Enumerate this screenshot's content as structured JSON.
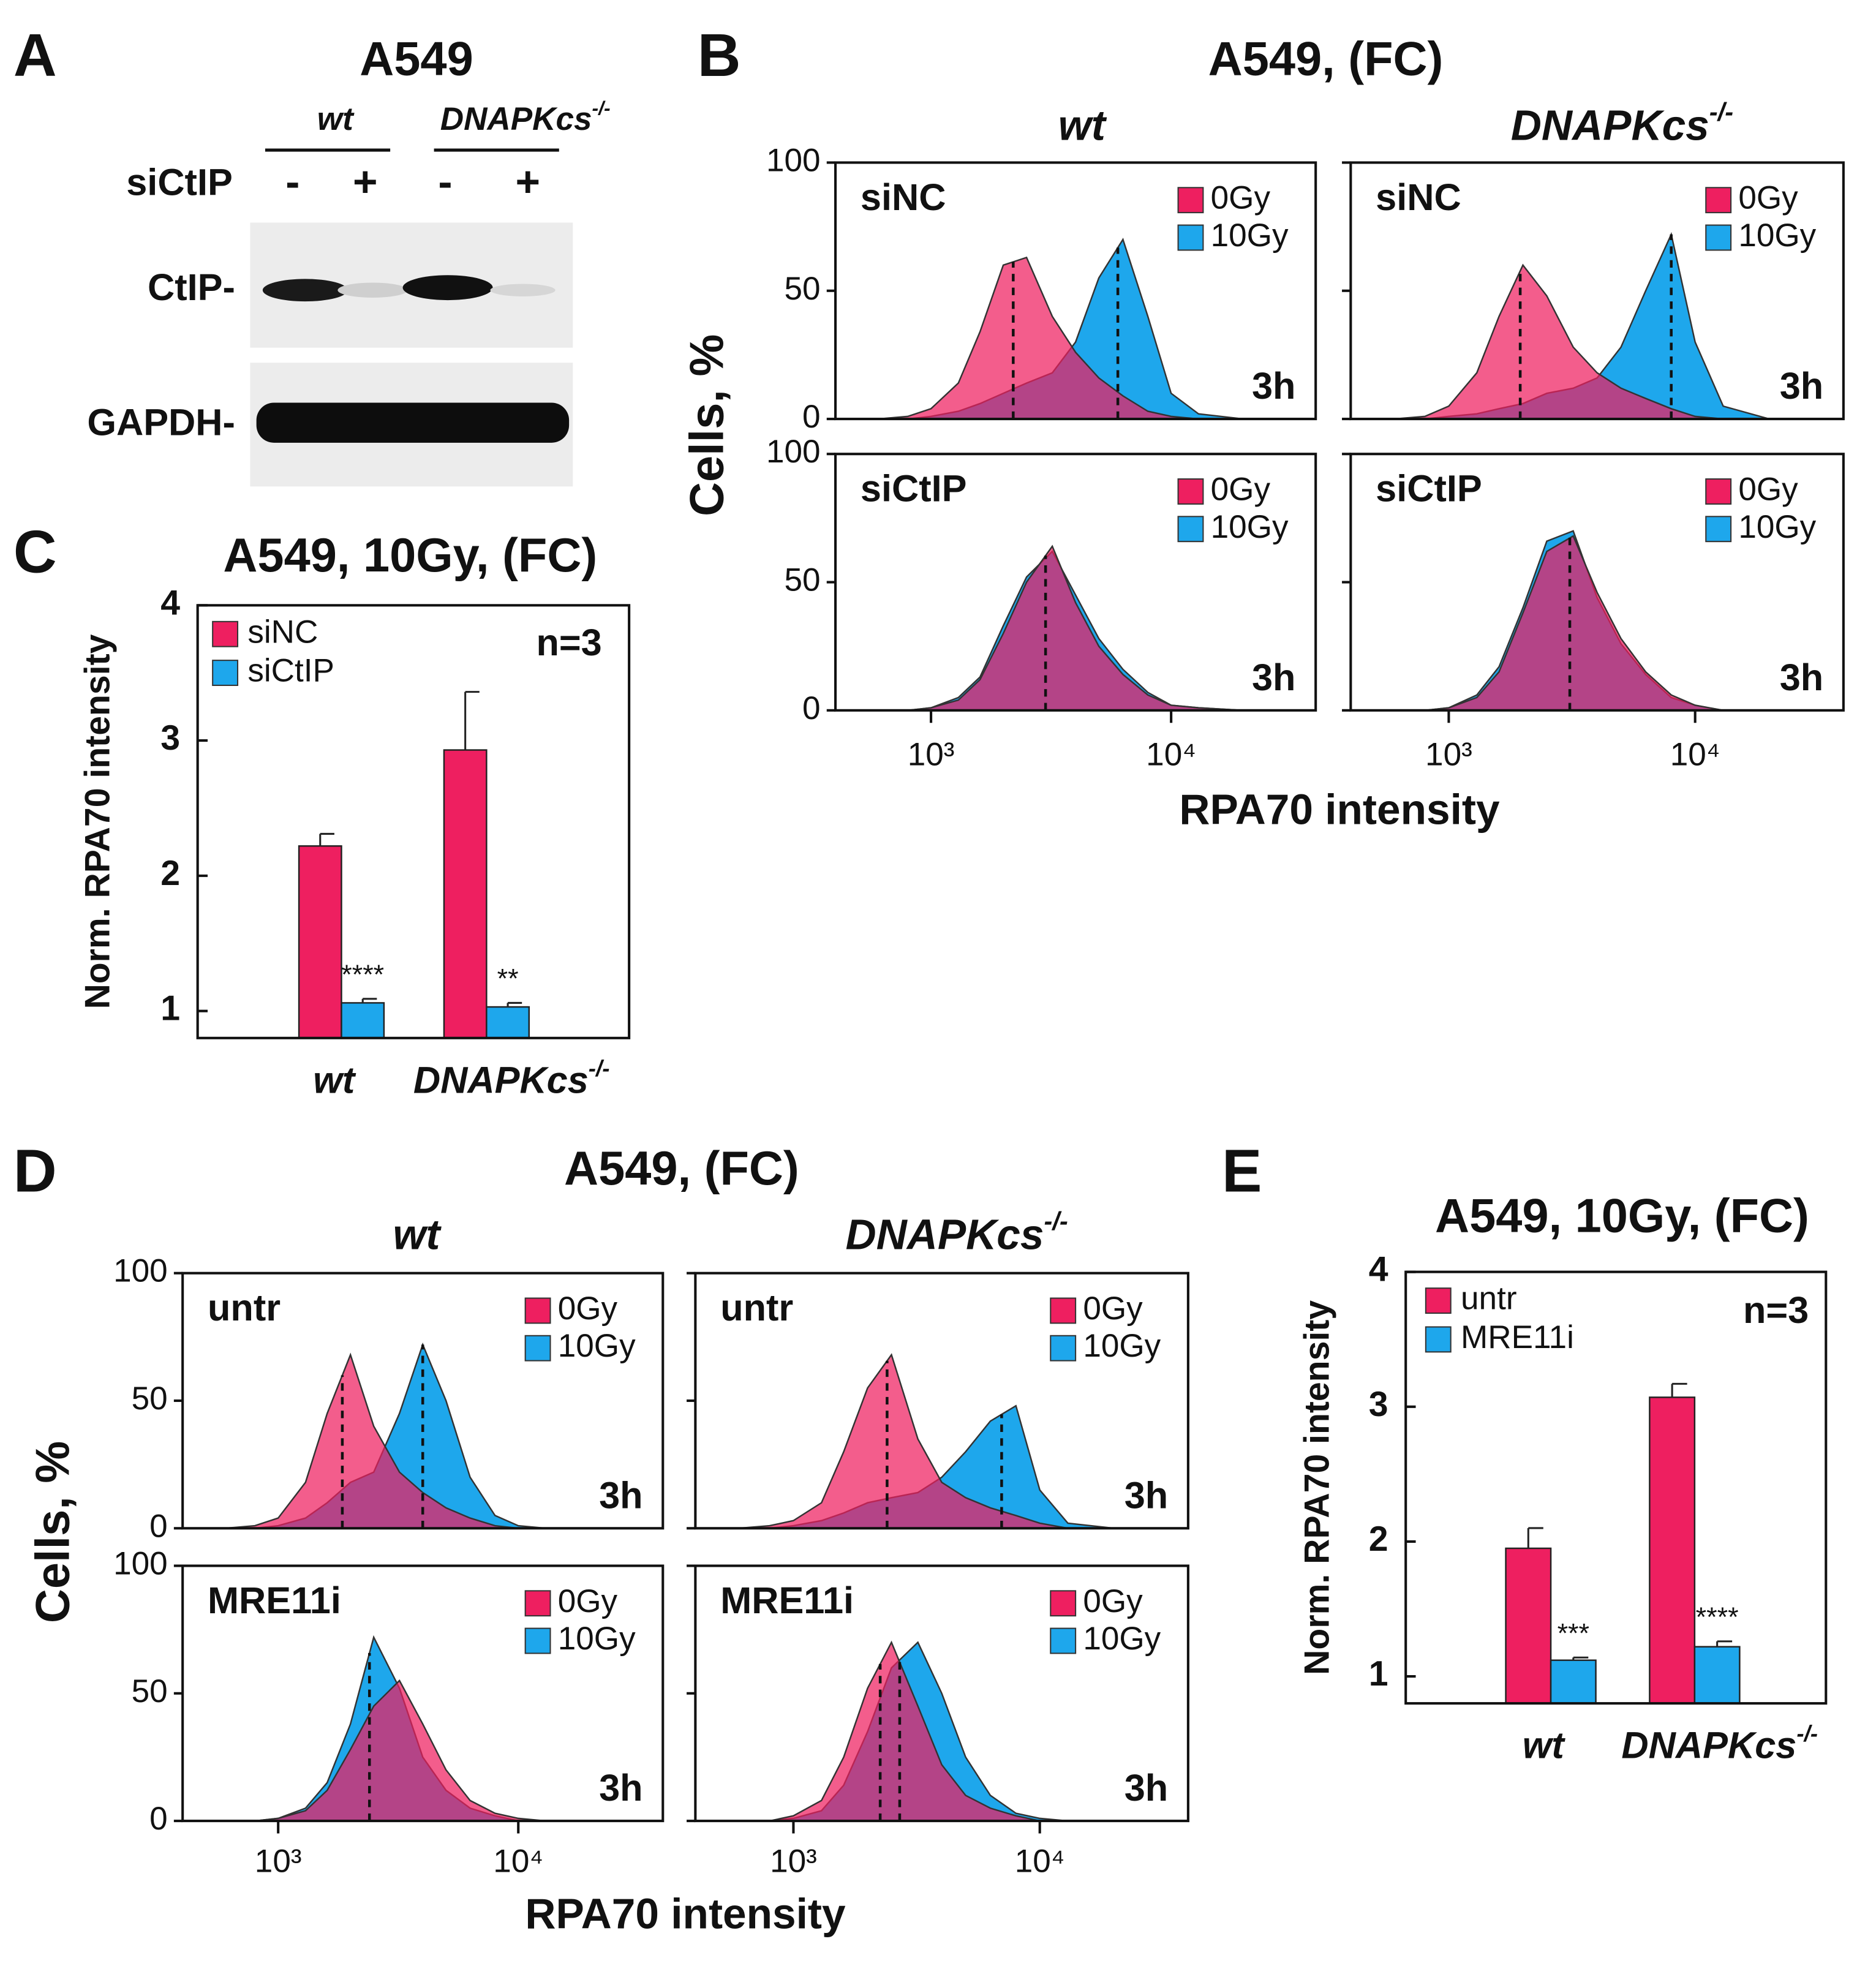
{
  "panel_labels": [
    "A",
    "B",
    "C",
    "D",
    "E"
  ],
  "blot": {
    "title": "A549",
    "groups": [
      {
        "name": "wt"
      },
      {
        "name": "DNAPKcs",
        "sup": "-/-"
      }
    ],
    "treatment": "siCtIP",
    "lanes": [
      "-",
      "+",
      "-",
      "+"
    ],
    "bands": [
      "CtIP-",
      "GAPDH-"
    ]
  },
  "flows": [
    {
      "title": "A549, (FC)",
      "columns": [
        {
          "name": "wt"
        },
        {
          "name": "DNAPKcs",
          "sup": "-/-"
        }
      ],
      "ylabel": "Cells, %",
      "xlabel": "RPA70 intensity",
      "xscale": "log",
      "xlim": [
        400,
        40000
      ],
      "xticks": [
        {
          "value": 1000,
          "label": "10³"
        },
        {
          "value": 10000,
          "label": "10⁴"
        }
      ],
      "ylim": [
        0,
        100
      ],
      "yticks": [
        0,
        50,
        100
      ],
      "time": "3h",
      "x": [
        600,
        800,
        1000,
        1300,
        1600,
        2000,
        2500,
        3200,
        4000,
        5000,
        6300,
        8000,
        10000,
        13000,
        20000
      ],
      "panels": [
        {
          "condition": "siNC",
          "series": [
            {
              "name": "0Gy",
              "color": "#ee1f60",
              "values": [
                0,
                1,
                4,
                14,
                34,
                60,
                63,
                40,
                26,
                16,
                9,
                3,
                1,
                0,
                0
              ]
            },
            {
              "name": "10Gy",
              "color": "#1ea7ec",
              "values": [
                0,
                0,
                1,
                3,
                6,
                10,
                14,
                18,
                30,
                55,
                70,
                40,
                10,
                2,
                0
              ]
            }
          ],
          "medians": [
            2200,
            6000
          ]
        },
        {
          "condition": "siNC",
          "series": [
            {
              "name": "0Gy",
              "color": "#ee1f60",
              "values": [
                0,
                1,
                5,
                18,
                40,
                60,
                48,
                28,
                18,
                12,
                8,
                4,
                1,
                0,
                0
              ]
            },
            {
              "name": "10Gy",
              "color": "#1ea7ec",
              "values": [
                0,
                0,
                1,
                2,
                4,
                6,
                10,
                12,
                16,
                28,
                50,
                72,
                30,
                5,
                0
              ]
            }
          ],
          "medians": [
            1950,
            8000
          ]
        },
        {
          "condition": "siCtIP",
          "series": [
            {
              "name": "0Gy",
              "color": "#ee1f60",
              "values": [
                0,
                0,
                1,
                4,
                12,
                30,
                50,
                64,
                42,
                25,
                14,
                6,
                2,
                1,
                0
              ]
            },
            {
              "name": "10Gy",
              "color": "#1ea7ec",
              "values": [
                0,
                0,
                1,
                5,
                13,
                33,
                52,
                62,
                45,
                28,
                16,
                7,
                2,
                1,
                0
              ]
            }
          ],
          "medians": [
            3000
          ]
        },
        {
          "condition": "siCtIP",
          "series": [
            {
              "name": "0Gy",
              "color": "#ee1f60",
              "values": [
                0,
                0,
                1,
                5,
                15,
                38,
                62,
                68,
                46,
                28,
                15,
                6,
                2,
                0,
                0
              ]
            },
            {
              "name": "10Gy",
              "color": "#1ea7ec",
              "values": [
                0,
                0,
                1,
                6,
                17,
                40,
                66,
                70,
                44,
                26,
                14,
                5,
                2,
                0,
                0
              ]
            }
          ],
          "medians": [
            3100
          ]
        }
      ]
    },
    {
      "title": "A549, (FC)",
      "columns": [
        {
          "name": "wt"
        },
        {
          "name": "DNAPKcs",
          "sup": "-/-"
        }
      ],
      "ylabel": "Cells, %",
      "xlabel": "RPA70 intensity",
      "xscale": "log",
      "xlim": [
        400,
        40000
      ],
      "xticks": [
        {
          "value": 1000,
          "label": "10³"
        },
        {
          "value": 10000,
          "label": "10⁴"
        }
      ],
      "ylim": [
        0,
        100
      ],
      "yticks": [
        0,
        50,
        100
      ],
      "time": "3h",
      "x": [
        600,
        800,
        1000,
        1300,
        1600,
        2000,
        2500,
        3200,
        4000,
        5000,
        6300,
        8000,
        10000,
        13000,
        20000
      ],
      "panels": [
        {
          "condition": "untr",
          "series": [
            {
              "name": "0Gy",
              "color": "#ee1f60",
              "values": [
                0,
                1,
                4,
                18,
                45,
                68,
                40,
                22,
                14,
                8,
                4,
                1,
                0,
                0,
                0
              ]
            },
            {
              "name": "10Gy",
              "color": "#1ea7ec",
              "values": [
                0,
                0,
                1,
                4,
                10,
                18,
                22,
                45,
                72,
                50,
                20,
                5,
                1,
                0,
                0
              ]
            }
          ],
          "medians": [
            1850,
            4000
          ]
        },
        {
          "condition": "untr",
          "series": [
            {
              "name": "0Gy",
              "color": "#ee1f60",
              "values": [
                0,
                1,
                3,
                10,
                30,
                55,
                68,
                35,
                18,
                12,
                8,
                5,
                2,
                0,
                0
              ]
            },
            {
              "name": "10Gy",
              "color": "#1ea7ec",
              "values": [
                0,
                0,
                1,
                3,
                6,
                10,
                12,
                14,
                20,
                30,
                42,
                48,
                15,
                2,
                0
              ]
            }
          ],
          "medians": [
            2400,
            7000
          ]
        },
        {
          "condition": "MRE11i",
          "series": [
            {
              "name": "0Gy",
              "color": "#ee1f60",
              "values": [
                0,
                0,
                1,
                4,
                12,
                28,
                45,
                55,
                38,
                20,
                8,
                3,
                1,
                0,
                0
              ]
            },
            {
              "name": "10Gy",
              "color": "#1ea7ec",
              "values": [
                0,
                0,
                1,
                5,
                15,
                38,
                72,
                52,
                25,
                12,
                5,
                2,
                0,
                0,
                0
              ]
            }
          ],
          "medians": [
            2400
          ]
        },
        {
          "condition": "MRE11i",
          "series": [
            {
              "name": "0Gy",
              "color": "#ee1f60",
              "values": [
                0,
                0,
                2,
                8,
                25,
                52,
                70,
                45,
                22,
                10,
                5,
                2,
                0,
                0,
                0
              ]
            },
            {
              "name": "10Gy",
              "color": "#1ea7ec",
              "values": [
                0,
                0,
                1,
                4,
                14,
                35,
                60,
                70,
                50,
                25,
                10,
                3,
                1,
                0,
                0
              ]
            }
          ],
          "medians": [
            2250,
            2700
          ]
        }
      ]
    }
  ],
  "bars": [
    {
      "type": "bar",
      "title": "A549, 10Gy, (FC)",
      "ylabel": "Norm. RPA70 intensity",
      "annotation": "n=3",
      "categories": [
        {
          "name": "wt"
        },
        {
          "name": "DNAPKcs",
          "sup": "-/-"
        }
      ],
      "ylim": [
        0.8,
        4
      ],
      "yticks": [
        1,
        2,
        3,
        4
      ],
      "series": [
        {
          "name": "siNC",
          "color": "#ee1f60",
          "values": [
            2.22,
            2.93
          ],
          "errors": [
            0.09,
            0.43
          ]
        },
        {
          "name": "siCtIP",
          "color": "#1ea7ec",
          "values": [
            1.06,
            1.03
          ],
          "errors": [
            0.03,
            0.03
          ],
          "significance": [
            "****",
            "**"
          ]
        }
      ]
    },
    {
      "type": "bar",
      "title": "A549, 10Gy, (FC)",
      "ylabel": "Norm. RPA70 intensity",
      "annotation": "n=3",
      "categories": [
        {
          "name": "wt"
        },
        {
          "name": "DNAPKcs",
          "sup": "-/-"
        }
      ],
      "ylim": [
        0.8,
        4
      ],
      "yticks": [
        1,
        2,
        3,
        4
      ],
      "series": [
        {
          "name": "untr",
          "color": "#ee1f60",
          "values": [
            1.95,
            3.07
          ],
          "errors": [
            0.15,
            0.1
          ]
        },
        {
          "name": "MRE11i",
          "color": "#1ea7ec",
          "values": [
            1.12,
            1.22
          ],
          "errors": [
            0.02,
            0.04
          ],
          "significance": [
            "***",
            "****"
          ]
        }
      ]
    }
  ]
}
